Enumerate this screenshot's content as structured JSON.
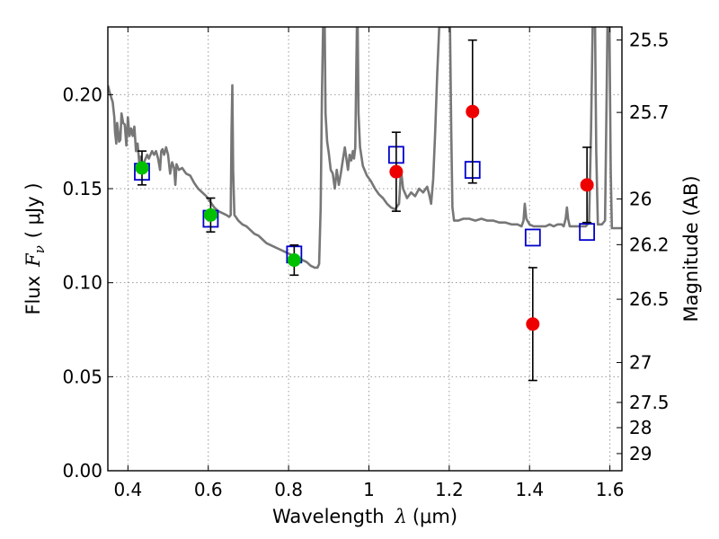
{
  "chart_data": {
    "type": "scatter",
    "xlabel": "Wavelength",
    "xlabel_symbol": "λ",
    "xlabel_unit": "(μm)",
    "ylabel": "Flux",
    "ylabel_symbol": "F",
    "ylabel_sub": "ν",
    "ylabel_unit": "( μJy )",
    "y2label": "Magnitude (AB)",
    "xlim": [
      0.35,
      1.63
    ],
    "ylim": [
      0.0,
      0.236
    ],
    "grid": true,
    "x_ticks": [
      0.4,
      0.6,
      0.8,
      1.0,
      1.2,
      1.4,
      1.6
    ],
    "x_tick_labels": [
      "0.4",
      "0.6",
      "0.8",
      "1",
      "1.2",
      "1.4",
      "1.6"
    ],
    "y_ticks": [
      0.0,
      0.05,
      0.1,
      0.15,
      0.2
    ],
    "y_tick_labels": [
      "0.00",
      "0.05",
      "0.10",
      "0.15",
      "0.20"
    ],
    "mag_ticks": [
      25.5,
      25.7,
      26,
      26.2,
      26.5,
      27,
      27.5,
      28,
      29
    ],
    "mag_tick_labels": [
      "25.5",
      "25.7",
      "26",
      "26.2",
      "26.5",
      "27",
      "27.5",
      "28",
      "29"
    ],
    "series": [
      {
        "marker": "circle",
        "color": "#00c000",
        "points": [
          {
            "x": 0.435,
            "y": 0.161,
            "yerr": 0.009
          },
          {
            "x": 0.606,
            "y": 0.136,
            "yerr": 0.009
          },
          {
            "x": 0.814,
            "y": 0.112,
            "yerr": 0.008
          }
        ]
      },
      {
        "marker": "circle",
        "color": "#ee0000",
        "points": [
          {
            "x": 1.068,
            "y": 0.159,
            "yerr": 0.021
          },
          {
            "x": 1.258,
            "y": 0.191,
            "yerr": 0.038
          },
          {
            "x": 1.408,
            "y": 0.078,
            "yerr": 0.03
          },
          {
            "x": 1.543,
            "y": 0.152,
            "yerr": 0.02
          }
        ]
      },
      {
        "marker": "open-square",
        "color": "#0000cc",
        "points": [
          {
            "x": 0.435,
            "y": 0.159
          },
          {
            "x": 0.606,
            "y": 0.134
          },
          {
            "x": 0.814,
            "y": 0.115
          },
          {
            "x": 1.068,
            "y": 0.168
          },
          {
            "x": 1.258,
            "y": 0.16
          },
          {
            "x": 1.408,
            "y": 0.124
          },
          {
            "x": 1.543,
            "y": 0.127
          }
        ]
      },
      {
        "marker": "line",
        "color": "#777777",
        "points": [
          [
            0.35,
            0.205
          ],
          [
            0.356,
            0.2
          ],
          [
            0.362,
            0.196
          ],
          [
            0.366,
            0.188
          ],
          [
            0.368,
            0.18
          ],
          [
            0.371,
            0.174
          ],
          [
            0.373,
            0.185
          ],
          [
            0.376,
            0.18
          ],
          [
            0.378,
            0.175
          ],
          [
            0.381,
            0.176
          ],
          [
            0.384,
            0.19
          ],
          [
            0.388,
            0.185
          ],
          [
            0.392,
            0.184
          ],
          [
            0.396,
            0.173
          ],
          [
            0.4,
            0.188
          ],
          [
            0.404,
            0.178
          ],
          [
            0.408,
            0.182
          ],
          [
            0.412,
            0.178
          ],
          [
            0.416,
            0.183
          ],
          [
            0.42,
            0.17
          ],
          [
            0.424,
            0.174
          ],
          [
            0.428,
            0.164
          ],
          [
            0.432,
            0.167
          ],
          [
            0.436,
            0.16
          ],
          [
            0.44,
            0.164
          ],
          [
            0.444,
            0.166
          ],
          [
            0.448,
            0.168
          ],
          [
            0.452,
            0.166
          ],
          [
            0.456,
            0.168
          ],
          [
            0.46,
            0.17
          ],
          [
            0.465,
            0.168
          ],
          [
            0.47,
            0.17
          ],
          [
            0.475,
            0.166
          ],
          [
            0.48,
            0.16
          ],
          [
            0.483,
            0.17
          ],
          [
            0.486,
            0.171
          ],
          [
            0.49,
            0.168
          ],
          [
            0.495,
            0.172
          ],
          [
            0.5,
            0.168
          ],
          [
            0.505,
            0.158
          ],
          [
            0.51,
            0.164
          ],
          [
            0.515,
            0.161
          ],
          [
            0.518,
            0.152
          ],
          [
            0.521,
            0.163
          ],
          [
            0.527,
            0.16
          ],
          [
            0.535,
            0.161
          ],
          [
            0.545,
            0.158
          ],
          [
            0.555,
            0.157
          ],
          [
            0.565,
            0.153
          ],
          [
            0.575,
            0.15
          ],
          [
            0.585,
            0.148
          ],
          [
            0.595,
            0.146
          ],
          [
            0.605,
            0.143
          ],
          [
            0.615,
            0.14
          ],
          [
            0.625,
            0.138
          ],
          [
            0.635,
            0.137
          ],
          [
            0.645,
            0.136
          ],
          [
            0.652,
            0.135
          ],
          [
            0.656,
            0.136
          ],
          [
            0.658,
            0.18
          ],
          [
            0.66,
            0.205
          ],
          [
            0.662,
            0.16
          ],
          [
            0.665,
            0.136
          ],
          [
            0.675,
            0.133
          ],
          [
            0.685,
            0.131
          ],
          [
            0.695,
            0.13
          ],
          [
            0.705,
            0.128
          ],
          [
            0.715,
            0.126
          ],
          [
            0.725,
            0.125
          ],
          [
            0.735,
            0.123
          ],
          [
            0.745,
            0.121
          ],
          [
            0.755,
            0.12
          ],
          [
            0.765,
            0.119
          ],
          [
            0.775,
            0.118
          ],
          [
            0.785,
            0.117
          ],
          [
            0.795,
            0.116
          ],
          [
            0.805,
            0.115
          ],
          [
            0.815,
            0.114
          ],
          [
            0.825,
            0.113
          ],
          [
            0.835,
            0.112
          ],
          [
            0.845,
            0.111
          ],
          [
            0.855,
            0.109
          ],
          [
            0.865,
            0.108
          ],
          [
            0.872,
            0.108
          ],
          [
            0.876,
            0.11
          ],
          [
            0.88,
            0.14
          ],
          [
            0.883,
            0.2
          ],
          [
            0.886,
            0.236
          ],
          [
            0.89,
            0.236
          ],
          [
            0.892,
            0.19
          ],
          [
            0.896,
            0.175
          ],
          [
            0.9,
            0.169
          ],
          [
            0.905,
            0.16
          ],
          [
            0.91,
            0.158
          ],
          [
            0.915,
            0.15
          ],
          [
            0.92,
            0.16
          ],
          [
            0.925,
            0.152
          ],
          [
            0.93,
            0.158
          ],
          [
            0.935,
            0.165
          ],
          [
            0.94,
            0.172
          ],
          [
            0.944,
            0.166
          ],
          [
            0.948,
            0.16
          ],
          [
            0.952,
            0.168
          ],
          [
            0.956,
            0.165
          ],
          [
            0.96,
            0.17
          ],
          [
            0.963,
            0.166
          ],
          [
            0.966,
            0.172
          ],
          [
            0.968,
            0.205
          ],
          [
            0.97,
            0.236
          ],
          [
            0.972,
            0.236
          ],
          [
            0.974,
            0.19
          ],
          [
            0.978,
            0.172
          ],
          [
            0.985,
            0.162
          ],
          [
            0.995,
            0.157
          ],
          [
            1.005,
            0.154
          ],
          [
            1.015,
            0.15
          ],
          [
            1.025,
            0.147
          ],
          [
            1.035,
            0.145
          ],
          [
            1.045,
            0.142
          ],
          [
            1.055,
            0.14
          ],
          [
            1.065,
            0.139
          ],
          [
            1.075,
            0.142
          ],
          [
            1.08,
            0.16
          ],
          [
            1.085,
            0.15
          ],
          [
            1.095,
            0.145
          ],
          [
            1.105,
            0.148
          ],
          [
            1.115,
            0.146
          ],
          [
            1.125,
            0.15
          ],
          [
            1.135,
            0.148
          ],
          [
            1.145,
            0.151
          ],
          [
            1.15,
            0.147
          ],
          [
            1.155,
            0.142
          ],
          [
            1.16,
            0.155
          ],
          [
            1.165,
            0.18
          ],
          [
            1.17,
            0.21
          ],
          [
            1.175,
            0.236
          ],
          [
            1.185,
            0.236
          ],
          [
            1.195,
            0.236
          ],
          [
            1.202,
            0.236
          ],
          [
            1.205,
            0.18
          ],
          [
            1.208,
            0.14
          ],
          [
            1.212,
            0.133
          ],
          [
            1.222,
            0.133
          ],
          [
            1.235,
            0.134
          ],
          [
            1.25,
            0.134
          ],
          [
            1.265,
            0.133
          ],
          [
            1.28,
            0.134
          ],
          [
            1.295,
            0.133
          ],
          [
            1.31,
            0.133
          ],
          [
            1.325,
            0.132
          ],
          [
            1.34,
            0.132
          ],
          [
            1.355,
            0.131
          ],
          [
            1.37,
            0.131
          ],
          [
            1.38,
            0.13
          ],
          [
            1.385,
            0.133
          ],
          [
            1.388,
            0.142
          ],
          [
            1.392,
            0.134
          ],
          [
            1.4,
            0.131
          ],
          [
            1.41,
            0.13
          ],
          [
            1.42,
            0.13
          ],
          [
            1.43,
            0.13
          ],
          [
            1.44,
            0.13
          ],
          [
            1.45,
            0.131
          ],
          [
            1.46,
            0.13
          ],
          [
            1.47,
            0.131
          ],
          [
            1.48,
            0.131
          ],
          [
            1.485,
            0.13
          ],
          [
            1.49,
            0.134
          ],
          [
            1.493,
            0.14
          ],
          [
            1.496,
            0.134
          ],
          [
            1.5,
            0.13
          ],
          [
            1.51,
            0.13
          ],
          [
            1.52,
            0.13
          ],
          [
            1.53,
            0.13
          ],
          [
            1.54,
            0.13
          ],
          [
            1.548,
            0.132
          ],
          [
            1.553,
            0.18
          ],
          [
            1.557,
            0.236
          ],
          [
            1.563,
            0.236
          ],
          [
            1.566,
            0.17
          ],
          [
            1.57,
            0.131
          ],
          [
            1.58,
            0.131
          ],
          [
            1.588,
            0.133
          ],
          [
            1.592,
            0.2
          ],
          [
            1.594,
            0.236
          ],
          [
            1.599,
            0.236
          ],
          [
            1.602,
            0.16
          ],
          [
            1.605,
            0.129
          ],
          [
            1.615,
            0.129
          ],
          [
            1.63,
            0.129
          ]
        ]
      }
    ]
  },
  "colors": {
    "spectrum": "#777777",
    "green_marker": "#00c000",
    "red_marker": "#ee0000",
    "blue_square": "#0000cc",
    "error_bar": "#000000",
    "grid": "#999999"
  }
}
